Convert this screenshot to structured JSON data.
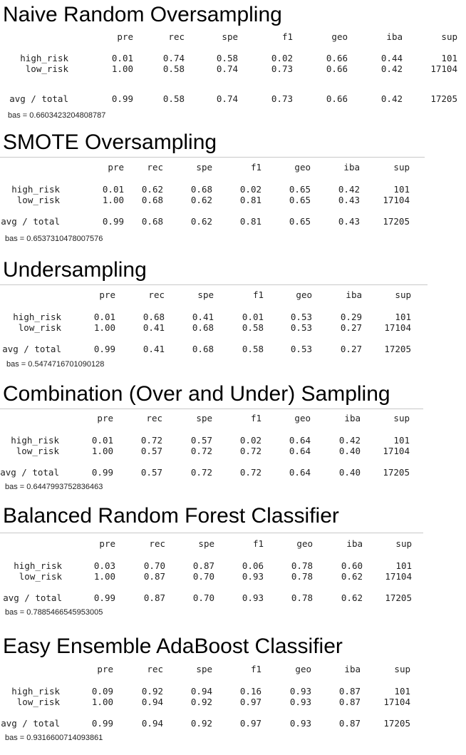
{
  "columns": [
    "pre",
    "rec",
    "spe",
    "f1",
    "geo",
    "iba",
    "sup"
  ],
  "sections": [
    {
      "title": "Naive Random Oversampling",
      "rows": [
        {
          "label": "high_risk",
          "values": [
            "0.01",
            "0.74",
            "0.58",
            "0.02",
            "0.66",
            "0.44",
            "101"
          ]
        },
        {
          "label": "low_risk",
          "values": [
            "1.00",
            "0.58",
            "0.74",
            "0.73",
            "0.66",
            "0.42",
            "17104"
          ]
        },
        {
          "label": "avg / total",
          "values": [
            "0.99",
            "0.58",
            "0.74",
            "0.73",
            "0.66",
            "0.42",
            "17205"
          ]
        }
      ],
      "bas": "bas = 0.6603423204808787"
    },
    {
      "title": "SMOTE Oversampling",
      "rows": [
        {
          "label": "high_risk",
          "values": [
            "0.01",
            "0.62",
            "0.68",
            "0.02",
            "0.65",
            "0.42",
            "101"
          ]
        },
        {
          "label": "low_risk",
          "values": [
            "1.00",
            "0.68",
            "0.62",
            "0.81",
            "0.65",
            "0.43",
            "17104"
          ]
        },
        {
          "label": "avg / total",
          "values": [
            "0.99",
            "0.68",
            "0.62",
            "0.81",
            "0.65",
            "0.43",
            "17205"
          ]
        }
      ],
      "bas": "bas = 0.6537310478007576"
    },
    {
      "title": "Undersampling",
      "rows": [
        {
          "label": "high_risk",
          "values": [
            "0.01",
            "0.68",
            "0.41",
            "0.01",
            "0.53",
            "0.29",
            "101"
          ]
        },
        {
          "label": "low_risk",
          "values": [
            "1.00",
            "0.41",
            "0.68",
            "0.58",
            "0.53",
            "0.27",
            "17104"
          ]
        },
        {
          "label": "avg / total",
          "values": [
            "0.99",
            "0.41",
            "0.68",
            "0.58",
            "0.53",
            "0.27",
            "17205"
          ]
        }
      ],
      "bas": "bas = 0.5474716701090128"
    },
    {
      "title": "Combination (Over and Under) Sampling",
      "rows": [
        {
          "label": "high_risk",
          "values": [
            "0.01",
            "0.72",
            "0.57",
            "0.02",
            "0.64",
            "0.42",
            "101"
          ]
        },
        {
          "label": "low_risk",
          "values": [
            "1.00",
            "0.57",
            "0.72",
            "0.72",
            "0.64",
            "0.40",
            "17104"
          ]
        },
        {
          "label": "avg / total",
          "values": [
            "0.99",
            "0.57",
            "0.72",
            "0.72",
            "0.64",
            "0.40",
            "17205"
          ]
        }
      ],
      "bas": "bas = 0.6447993752836463"
    },
    {
      "title": "Balanced Random Forest Classifier",
      "rows": [
        {
          "label": "high_risk",
          "values": [
            "0.03",
            "0.70",
            "0.87",
            "0.06",
            "0.78",
            "0.60",
            "101"
          ]
        },
        {
          "label": "low_risk",
          "values": [
            "1.00",
            "0.87",
            "0.70",
            "0.93",
            "0.78",
            "0.62",
            "17104"
          ]
        },
        {
          "label": "avg / total",
          "values": [
            "0.99",
            "0.87",
            "0.70",
            "0.93",
            "0.78",
            "0.62",
            "17205"
          ]
        }
      ],
      "bas": "bas = 0.7885466545953005"
    },
    {
      "title": "Easy Ensemble AdaBoost Classifier",
      "rows": [
        {
          "label": "high_risk",
          "values": [
            "0.09",
            "0.92",
            "0.94",
            "0.16",
            "0.93",
            "0.87",
            "101"
          ]
        },
        {
          "label": "low_risk",
          "values": [
            "1.00",
            "0.94",
            "0.92",
            "0.97",
            "0.93",
            "0.87",
            "17104"
          ]
        },
        {
          "label": "avg / total",
          "values": [
            "0.99",
            "0.94",
            "0.92",
            "0.97",
            "0.93",
            "0.87",
            "17205"
          ]
        }
      ],
      "bas": "bas = 0.9316600714093861"
    }
  ]
}
